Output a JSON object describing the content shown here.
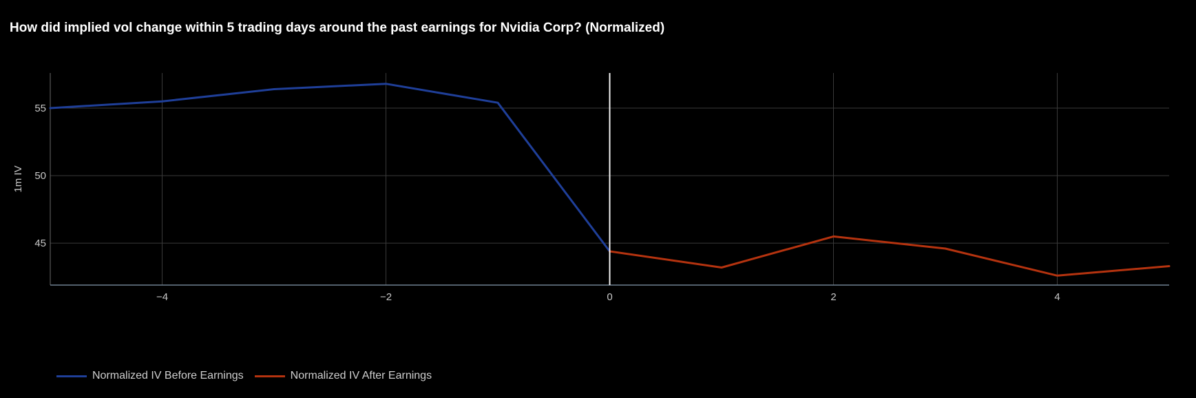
{
  "title": "How did implied vol change within 5 trading days around the past earnings for Nvidia Corp? (Normalized)",
  "chart_data": {
    "type": "line",
    "title": "How did implied vol change within 5 trading days around the past earnings for Nvidia Corp? (Normalized)",
    "xlabel": "",
    "ylabel": "1m IV",
    "xlim": [
      -5,
      5
    ],
    "ylim": [
      41.9,
      57.6
    ],
    "xticks": [
      -4,
      -2,
      0,
      2,
      4
    ],
    "xtick_labels": [
      "−4",
      "−2",
      "0",
      "2",
      "4"
    ],
    "yticks": [
      45,
      50,
      55
    ],
    "ytick_labels": [
      "45",
      "50",
      "55"
    ],
    "grid": true,
    "vertical_marker_x": 0,
    "legend_position": "bottom-left",
    "series": [
      {
        "name": "Normalized IV Before Earnings",
        "color": "#1f3f99",
        "x": [
          -5,
          -4,
          -3,
          -2,
          -1,
          0
        ],
        "y": [
          55.0,
          55.5,
          56.4,
          56.8,
          55.4,
          44.4
        ]
      },
      {
        "name": "Normalized IV After Earnings",
        "color": "#b5330f",
        "x": [
          0,
          1,
          2,
          3,
          4,
          5
        ],
        "y": [
          44.4,
          43.2,
          45.5,
          44.6,
          42.6,
          43.3
        ]
      }
    ]
  },
  "legend": {
    "items": [
      {
        "label": "Normalized IV Before Earnings",
        "color": "#1f3f99"
      },
      {
        "label": "Normalized IV After Earnings",
        "color": "#b5330f"
      }
    ]
  }
}
